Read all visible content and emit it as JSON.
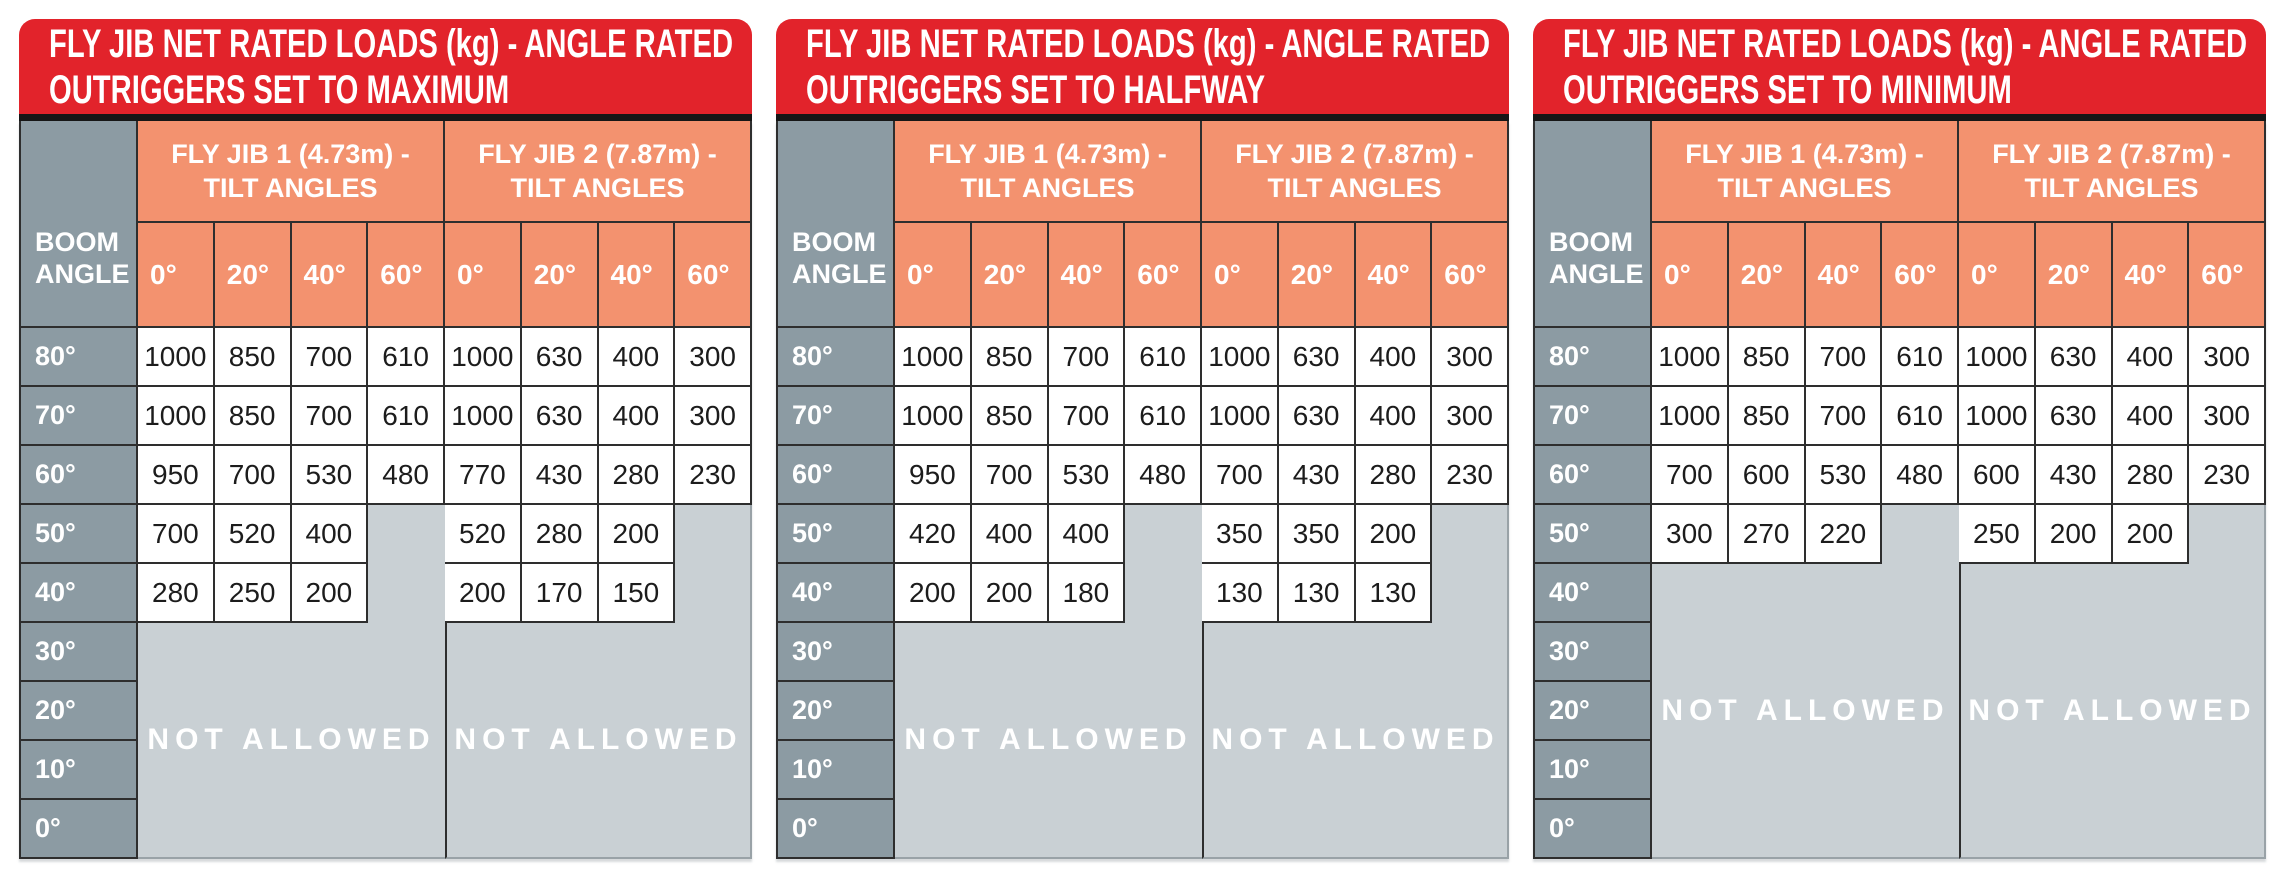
{
  "colors": {
    "title_bar": "#E2232B",
    "title_underline": "#161616",
    "header_fill": "#F3926F",
    "boom_fill": "#8C9BA3",
    "not_allowed_fill": "#C9D0D4",
    "grid_line": "#2E2E2E",
    "value_text": "#1C1C1C",
    "header_text": "#FFFFFF"
  },
  "shared": {
    "boom_angle_label": "BOOM ANGLE",
    "jib1_header_line1": "FLY JIB 1 (4.73m) -",
    "jib1_header_line2": "TILT ANGLES",
    "jib2_header_line1": "FLY JIB 2 (7.87m) -",
    "jib2_header_line2": "TILT ANGLES",
    "tilt_angles": [
      "0°",
      "20°",
      "40°",
      "60°"
    ],
    "boom_angles": [
      "80°",
      "70°",
      "60°",
      "50°",
      "40°",
      "30°",
      "20°",
      "10°",
      "0°"
    ],
    "not_allowed_label": "NOT ALLOWED"
  },
  "tables": [
    {
      "id": "maximum",
      "title_line1": "FLY JIB NET RATED LOADS (kg) - ANGLE RATED",
      "title_line2": "OUTRIGGERS SET TO MAXIMUM",
      "not_allowed_from": "30°",
      "rows": [
        {
          "boom": "80°",
          "values": [
            1000,
            850,
            700,
            610,
            1000,
            630,
            400,
            300
          ]
        },
        {
          "boom": "70°",
          "values": [
            1000,
            850,
            700,
            610,
            1000,
            630,
            400,
            300
          ]
        },
        {
          "boom": "60°",
          "values": [
            950,
            700,
            530,
            480,
            770,
            430,
            280,
            230
          ]
        },
        {
          "boom": "50°",
          "values": [
            700,
            520,
            400,
            null,
            520,
            280,
            200,
            null
          ]
        },
        {
          "boom": "40°",
          "values": [
            280,
            250,
            200,
            null,
            200,
            170,
            150,
            null
          ]
        },
        {
          "boom": "30°",
          "values": [
            null,
            null,
            null,
            null,
            null,
            null,
            null,
            null
          ]
        },
        {
          "boom": "20°",
          "values": [
            null,
            null,
            null,
            null,
            null,
            null,
            null,
            null
          ]
        },
        {
          "boom": "10°",
          "values": [
            null,
            null,
            null,
            null,
            null,
            null,
            null,
            null
          ]
        },
        {
          "boom": "0°",
          "values": [
            null,
            null,
            null,
            null,
            null,
            null,
            null,
            null
          ]
        }
      ]
    },
    {
      "id": "halfway",
      "title_line1": "FLY JIB NET RATED LOADS (kg) - ANGLE RATED",
      "title_line2": "OUTRIGGERS SET TO HALFWAY",
      "not_allowed_from": "30°",
      "rows": [
        {
          "boom": "80°",
          "values": [
            1000,
            850,
            700,
            610,
            1000,
            630,
            400,
            300
          ]
        },
        {
          "boom": "70°",
          "values": [
            1000,
            850,
            700,
            610,
            1000,
            630,
            400,
            300
          ]
        },
        {
          "boom": "60°",
          "values": [
            950,
            700,
            530,
            480,
            700,
            430,
            280,
            230
          ]
        },
        {
          "boom": "50°",
          "values": [
            420,
            400,
            400,
            null,
            350,
            350,
            200,
            null
          ]
        },
        {
          "boom": "40°",
          "values": [
            200,
            200,
            180,
            null,
            130,
            130,
            130,
            null
          ]
        },
        {
          "boom": "30°",
          "values": [
            null,
            null,
            null,
            null,
            null,
            null,
            null,
            null
          ]
        },
        {
          "boom": "20°",
          "values": [
            null,
            null,
            null,
            null,
            null,
            null,
            null,
            null
          ]
        },
        {
          "boom": "10°",
          "values": [
            null,
            null,
            null,
            null,
            null,
            null,
            null,
            null
          ]
        },
        {
          "boom": "0°",
          "values": [
            null,
            null,
            null,
            null,
            null,
            null,
            null,
            null
          ]
        }
      ]
    },
    {
      "id": "minimum",
      "title_line1": "FLY JIB NET RATED LOADS (kg) - ANGLE RATED",
      "title_line2": "OUTRIGGERS SET TO MINIMUM",
      "not_allowed_from": "40°",
      "rows": [
        {
          "boom": "80°",
          "values": [
            1000,
            850,
            700,
            610,
            1000,
            630,
            400,
            300
          ]
        },
        {
          "boom": "70°",
          "values": [
            1000,
            850,
            700,
            610,
            1000,
            630,
            400,
            300
          ]
        },
        {
          "boom": "60°",
          "values": [
            700,
            600,
            530,
            480,
            600,
            430,
            280,
            230
          ]
        },
        {
          "boom": "50°",
          "values": [
            300,
            270,
            220,
            null,
            250,
            200,
            200,
            null
          ]
        },
        {
          "boom": "40°",
          "values": [
            null,
            null,
            null,
            null,
            null,
            null,
            null,
            null
          ]
        },
        {
          "boom": "30°",
          "values": [
            null,
            null,
            null,
            null,
            null,
            null,
            null,
            null
          ]
        },
        {
          "boom": "20°",
          "values": [
            null,
            null,
            null,
            null,
            null,
            null,
            null,
            null
          ]
        },
        {
          "boom": "10°",
          "values": [
            null,
            null,
            null,
            null,
            null,
            null,
            null,
            null
          ]
        },
        {
          "boom": "0°",
          "values": [
            null,
            null,
            null,
            null,
            null,
            null,
            null,
            null
          ]
        }
      ]
    }
  ]
}
